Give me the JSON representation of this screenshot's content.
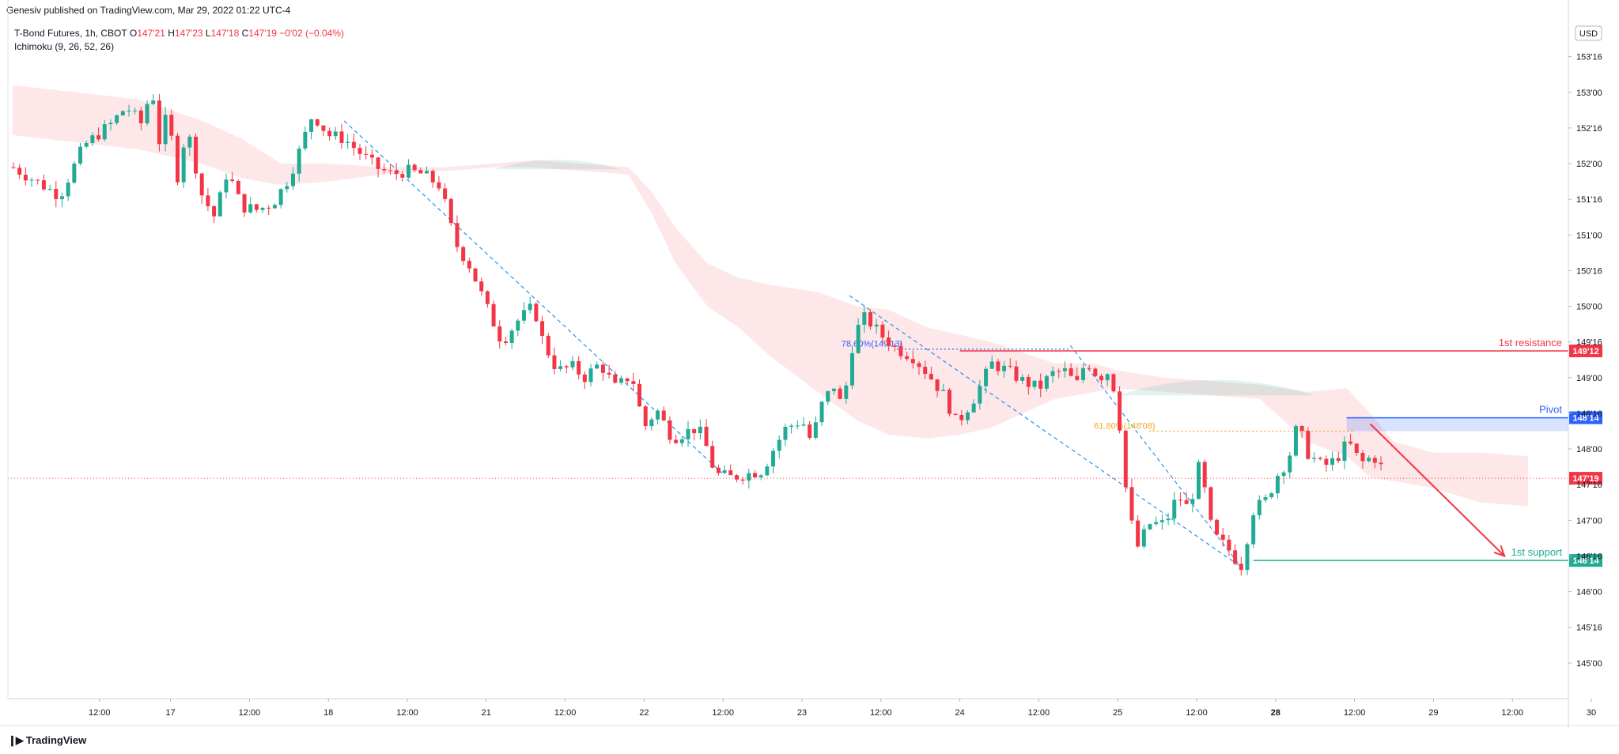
{
  "header": {
    "published": "Genesiv published on TradingView.com, Mar 29, 2022 01:22 UTC-4"
  },
  "legend": {
    "symbol": "T-Bond Futures, 1h, CBOT",
    "o_label": "O",
    "o": "147'21",
    "h_label": "H",
    "h": "147'23",
    "l_label": "L",
    "l": "147'18",
    "c_label": "C",
    "c": "147'19",
    "change": "−0'02 (−0.04%)",
    "indicator": "Ichimoku (9, 26, 52, 26)"
  },
  "footer": {
    "brand": "TradingView"
  },
  "chart_data": {
    "type": "candlestick",
    "currency": "USD",
    "ylim": [
      144.5,
      154.05
    ],
    "y_ticks": [
      {
        "v": 145.0,
        "label": "145'00"
      },
      {
        "v": 145.5,
        "label": "145'16"
      },
      {
        "v": 146.0,
        "label": "146'00"
      },
      {
        "v": 146.5,
        "label": "146'16"
      },
      {
        "v": 147.0,
        "label": "147'00"
      },
      {
        "v": 147.5,
        "label": "147'16"
      },
      {
        "v": 148.0,
        "label": "148'00"
      },
      {
        "v": 148.5,
        "label": "148'16"
      },
      {
        "v": 149.0,
        "label": "149'00"
      },
      {
        "v": 149.5,
        "label": "149'16"
      },
      {
        "v": 150.0,
        "label": "150'00"
      },
      {
        "v": 150.5,
        "label": "150'16"
      },
      {
        "v": 151.0,
        "label": "151'00"
      },
      {
        "v": 151.5,
        "label": "151'16"
      },
      {
        "v": 152.0,
        "label": "152'00"
      },
      {
        "v": 152.5,
        "label": "152'16"
      },
      {
        "v": 153.0,
        "label": "153'00"
      },
      {
        "v": 153.5,
        "label": "153'16"
      }
    ],
    "x_ticks": [
      {
        "x": 0.55,
        "label": "12:00",
        "bold": false
      },
      {
        "x": 1.0,
        "label": "17",
        "bold": false
      },
      {
        "x": 1.5,
        "label": "12:00",
        "bold": false
      },
      {
        "x": 2.0,
        "label": "18",
        "bold": false
      },
      {
        "x": 2.5,
        "label": "12:00",
        "bold": false
      },
      {
        "x": 3.0,
        "label": "21",
        "bold": false
      },
      {
        "x": 3.5,
        "label": "12:00",
        "bold": false
      },
      {
        "x": 4.0,
        "label": "22",
        "bold": false
      },
      {
        "x": 4.5,
        "label": "12:00",
        "bold": false
      },
      {
        "x": 5.0,
        "label": "23",
        "bold": false
      },
      {
        "x": 5.5,
        "label": "12:00",
        "bold": false
      },
      {
        "x": 6.0,
        "label": "24",
        "bold": false
      },
      {
        "x": 6.5,
        "label": "12:00",
        "bold": false
      },
      {
        "x": 7.0,
        "label": "25",
        "bold": false
      },
      {
        "x": 7.5,
        "label": "12:00",
        "bold": false
      },
      {
        "x": 8.0,
        "label": "28",
        "bold": true
      },
      {
        "x": 8.5,
        "label": "12:00",
        "bold": false
      },
      {
        "x": 9.0,
        "label": "29",
        "bold": false
      },
      {
        "x": 9.5,
        "label": "12:00",
        "bold": false
      },
      {
        "x": 10.0,
        "label": "30",
        "bold": false
      }
    ],
    "xlim": [
      0.0,
      10.0
    ],
    "price_path": [
      [
        0.0,
        151.95
      ],
      [
        0.15,
        151.75
      ],
      [
        0.3,
        151.55
      ],
      [
        0.45,
        152.25
      ],
      [
        0.62,
        152.55
      ],
      [
        0.72,
        152.8
      ],
      [
        0.82,
        152.55
      ],
      [
        0.88,
        153.1
      ],
      [
        0.93,
        152.3
      ],
      [
        0.98,
        152.7
      ],
      [
        1.05,
        151.75
      ],
      [
        1.1,
        152.55
      ],
      [
        1.2,
        151.55
      ],
      [
        1.28,
        151.25
      ],
      [
        1.36,
        151.9
      ],
      [
        1.45,
        151.4
      ],
      [
        1.55,
        151.35
      ],
      [
        1.65,
        151.45
      ],
      [
        1.75,
        151.8
      ],
      [
        1.82,
        152.2
      ],
      [
        1.9,
        152.7
      ],
      [
        2.0,
        152.4
      ],
      [
        2.1,
        152.35
      ],
      [
        2.2,
        152.15
      ],
      [
        2.3,
        151.95
      ],
      [
        2.4,
        151.85
      ],
      [
        2.5,
        151.9
      ],
      [
        2.6,
        151.85
      ],
      [
        2.7,
        151.7
      ],
      [
        2.75,
        151.35
      ],
      [
        2.8,
        150.9
      ],
      [
        2.9,
        150.55
      ],
      [
        3.0,
        150.0
      ],
      [
        3.1,
        149.5
      ],
      [
        3.2,
        149.8
      ],
      [
        3.3,
        150.0
      ],
      [
        3.36,
        149.5
      ],
      [
        3.45,
        149.1
      ],
      [
        3.55,
        149.15
      ],
      [
        3.62,
        149.0
      ],
      [
        3.72,
        149.2
      ],
      [
        3.82,
        148.85
      ],
      [
        3.92,
        149.05
      ],
      [
        4.0,
        148.3
      ],
      [
        4.08,
        148.55
      ],
      [
        4.18,
        148.15
      ],
      [
        4.28,
        148.25
      ],
      [
        4.34,
        148.3
      ],
      [
        4.4,
        148.0
      ],
      [
        4.45,
        147.65
      ],
      [
        4.55,
        147.6
      ],
      [
        4.65,
        147.65
      ],
      [
        4.75,
        147.7
      ],
      [
        4.82,
        148.0
      ],
      [
        4.9,
        148.3
      ],
      [
        5.0,
        148.4
      ],
      [
        5.06,
        148.1
      ],
      [
        5.12,
        148.6
      ],
      [
        5.2,
        148.9
      ],
      [
        5.26,
        148.55
      ],
      [
        5.3,
        149.25
      ],
      [
        5.34,
        149.65
      ],
      [
        5.4,
        149.85
      ],
      [
        5.5,
        149.6
      ],
      [
        5.6,
        149.4
      ],
      [
        5.7,
        149.3
      ],
      [
        5.8,
        149.05
      ],
      [
        5.9,
        148.75
      ],
      [
        5.98,
        148.35
      ],
      [
        6.1,
        148.75
      ],
      [
        6.2,
        149.2
      ],
      [
        6.3,
        149.1
      ],
      [
        6.4,
        148.95
      ],
      [
        6.5,
        148.85
      ],
      [
        6.58,
        149.05
      ],
      [
        6.66,
        149.1
      ],
      [
        6.74,
        148.9
      ],
      [
        6.8,
        149.25
      ],
      [
        6.88,
        149.0
      ],
      [
        6.95,
        149.1
      ],
      [
        7.0,
        148.6
      ],
      [
        7.06,
        147.25
      ],
      [
        7.12,
        146.6
      ],
      [
        7.2,
        146.95
      ],
      [
        7.3,
        146.95
      ],
      [
        7.38,
        147.35
      ],
      [
        7.45,
        147.15
      ],
      [
        7.52,
        147.8
      ],
      [
        7.6,
        146.8
      ],
      [
        7.7,
        146.6
      ],
      [
        7.78,
        146.35
      ],
      [
        7.86,
        147.15
      ],
      [
        7.95,
        147.3
      ],
      [
        8.0,
        147.6
      ],
      [
        8.08,
        147.85
      ],
      [
        8.14,
        148.35
      ],
      [
        8.2,
        147.95
      ],
      [
        8.3,
        147.75
      ],
      [
        8.38,
        147.85
      ],
      [
        8.46,
        148.1
      ],
      [
        8.54,
        147.8
      ],
      [
        8.62,
        147.9
      ],
      [
        8.7,
        147.65
      ]
    ],
    "cloud_upper": [
      [
        0.0,
        153.1
      ],
      [
        0.4,
        153.0
      ],
      [
        0.8,
        152.9
      ],
      [
        1.2,
        152.6
      ],
      [
        1.45,
        152.35
      ],
      [
        1.7,
        152.0
      ],
      [
        2.0,
        152.0
      ],
      [
        2.35,
        151.95
      ],
      [
        2.75,
        151.95
      ],
      [
        3.05,
        152.0
      ],
      [
        3.3,
        152.05
      ],
      [
        3.6,
        152.0
      ],
      [
        3.9,
        151.95
      ],
      [
        4.05,
        151.6
      ],
      [
        4.2,
        151.1
      ],
      [
        4.4,
        150.6
      ],
      [
        4.6,
        150.4
      ],
      [
        4.8,
        150.3
      ],
      [
        5.1,
        150.2
      ],
      [
        5.35,
        150.0
      ],
      [
        5.55,
        149.95
      ],
      [
        5.8,
        149.7
      ],
      [
        6.0,
        149.6
      ],
      [
        6.2,
        149.5
      ],
      [
        6.4,
        149.35
      ],
      [
        6.6,
        149.2
      ],
      [
        6.85,
        149.2
      ],
      [
        7.0,
        149.1
      ],
      [
        7.3,
        149.0
      ],
      [
        7.6,
        148.95
      ],
      [
        7.9,
        148.9
      ],
      [
        8.2,
        148.8
      ],
      [
        8.45,
        148.85
      ],
      [
        8.6,
        148.5
      ],
      [
        8.75,
        148.1
      ],
      [
        9.0,
        147.95
      ],
      [
        9.3,
        147.95
      ],
      [
        9.6,
        147.9
      ]
    ],
    "cloud_lower": [
      [
        0.0,
        152.4
      ],
      [
        0.4,
        152.3
      ],
      [
        0.8,
        152.2
      ],
      [
        1.2,
        152.0
      ],
      [
        1.45,
        151.8
      ],
      [
        1.7,
        151.7
      ],
      [
        2.0,
        151.75
      ],
      [
        2.35,
        151.85
      ],
      [
        2.75,
        151.9
      ],
      [
        3.05,
        151.95
      ],
      [
        3.3,
        151.95
      ],
      [
        3.6,
        151.9
      ],
      [
        3.9,
        151.85
      ],
      [
        4.05,
        151.3
      ],
      [
        4.2,
        150.6
      ],
      [
        4.4,
        150.0
      ],
      [
        4.6,
        149.7
      ],
      [
        4.8,
        149.3
      ],
      [
        5.1,
        148.8
      ],
      [
        5.35,
        148.4
      ],
      [
        5.55,
        148.2
      ],
      [
        5.8,
        148.15
      ],
      [
        6.0,
        148.2
      ],
      [
        6.2,
        148.3
      ],
      [
        6.4,
        148.5
      ],
      [
        6.6,
        148.7
      ],
      [
        6.85,
        148.8
      ],
      [
        7.0,
        148.85
      ],
      [
        7.3,
        148.8
      ],
      [
        7.6,
        148.75
      ],
      [
        7.9,
        148.7
      ],
      [
        8.2,
        148.1
      ],
      [
        8.45,
        147.9
      ],
      [
        8.6,
        147.6
      ],
      [
        8.75,
        147.55
      ],
      [
        9.0,
        147.45
      ],
      [
        9.3,
        147.25
      ],
      [
        9.6,
        147.2
      ]
    ],
    "green_cloud_segments": [
      {
        "x0": 3.05,
        "x1": 3.85,
        "top": 152.1,
        "bottom": 151.92
      },
      {
        "x0": 7.0,
        "x1": 8.25,
        "top": 149.1,
        "bottom": 148.75
      }
    ],
    "fib_levels": [
      {
        "label": "78.60%(149'13)",
        "value": 149.4,
        "x0": 5.25,
        "x1": 6.7,
        "color": "#2962ff"
      },
      {
        "label": "61.80%(148'08)",
        "value": 148.25,
        "x0": 6.85,
        "x1": 8.5,
        "color": "#f5a623"
      }
    ],
    "fib_trend_lines": [
      {
        "x0": 2.1,
        "y0": 152.6,
        "x1": 4.5,
        "y1": 147.65
      },
      {
        "x0": 5.3,
        "y0": 150.15,
        "x1": 7.78,
        "y1": 146.35
      },
      {
        "x0": 6.7,
        "y0": 149.45,
        "x1": 7.78,
        "y1": 146.35
      }
    ],
    "levels": [
      {
        "label": "1st resistance",
        "value": 149.375,
        "tag": "149'12",
        "color": "#f23645",
        "x0": 6.0
      },
      {
        "label": "Pivot",
        "value": 148.4375,
        "tag": "148'14",
        "color": "#2962ff",
        "x0": 8.45
      },
      {
        "label": "1st support",
        "value": 146.4375,
        "tag": "146'14",
        "color": "#22ab94",
        "x0": 7.86
      }
    ],
    "pivot_zone": {
      "x0": 8.45,
      "x1": 10.0,
      "top": 148.4375,
      "bottom": 148.25
    },
    "current_price": {
      "value": 147.59,
      "tag": "147'19",
      "color": "#f23645"
    },
    "projection_arrow": {
      "x0": 8.6,
      "y0": 148.35,
      "x1": 9.45,
      "y1": 146.5,
      "color": "#f23645"
    }
  }
}
